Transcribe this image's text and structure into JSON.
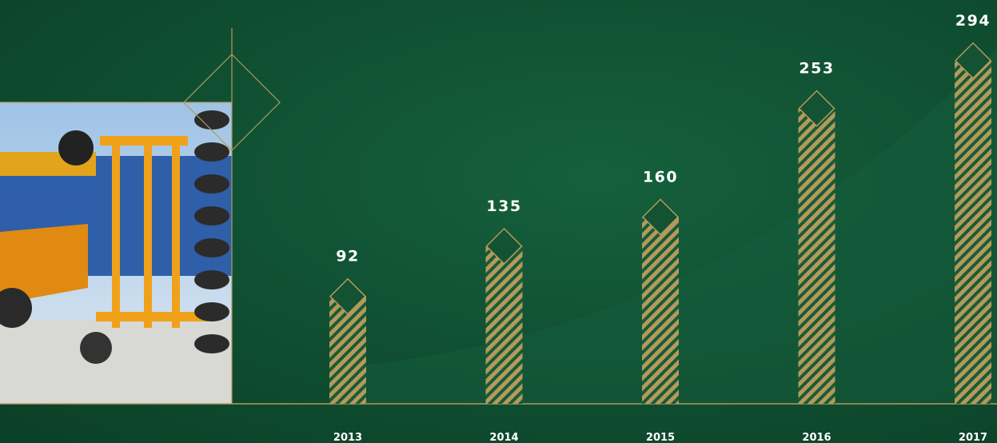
{
  "chart_data": {
    "type": "bar",
    "categories": [
      "2013",
      "2014",
      "2015",
      "2016",
      "2017"
    ],
    "values": [
      92,
      135,
      160,
      253,
      294
    ],
    "color": "#b39a5b",
    "ylim": [
      0,
      300
    ]
  }
}
